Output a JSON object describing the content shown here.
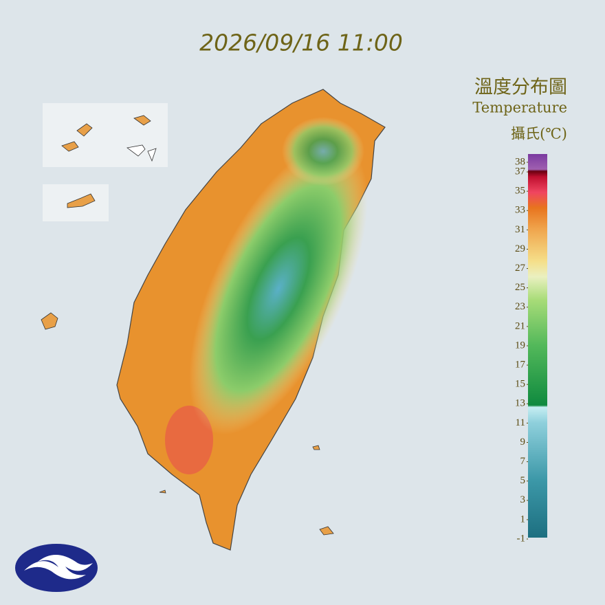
{
  "header": {
    "timestamp": "2026/09/16 11:00"
  },
  "legend": {
    "title": "溫度分布圖",
    "subtitle": "Temperature",
    "unit": "攝氏(℃)",
    "ticks": [
      38,
      37,
      35,
      33,
      31,
      29,
      27,
      25,
      23,
      21,
      19,
      17,
      15,
      13,
      11,
      9,
      7,
      5,
      3,
      1,
      -1
    ]
  }
}
